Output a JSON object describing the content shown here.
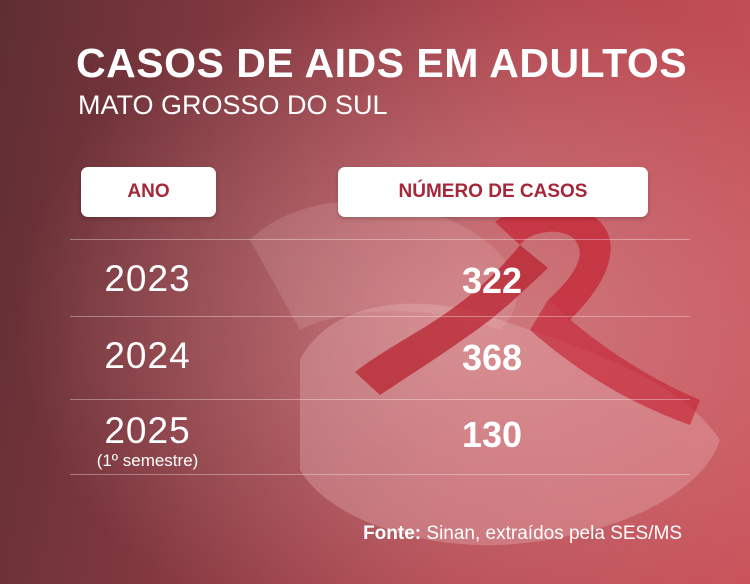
{
  "title": "CASOS DE AIDS EM ADULTOS",
  "subtitle": "MATO GROSSO DO SUL",
  "source_label": "Fonte:",
  "source_text": "Sinan, extraídos pela SES/MS",
  "chart_data": {
    "type": "table",
    "title": "CASOS DE AIDS EM ADULTOS",
    "subtitle": "MATO GROSSO DO SUL",
    "columns": [
      "ANO",
      "NÚMERO DE CASOS"
    ],
    "rows": [
      {
        "year": "2023",
        "note": "",
        "cases": 322
      },
      {
        "year": "2024",
        "note": "",
        "cases": 368
      },
      {
        "year": "2025",
        "note": "(1º semestre)",
        "cases": 130
      }
    ]
  },
  "colors": {
    "header_text": "#a4283a",
    "ribbon": "#c62a3a"
  }
}
